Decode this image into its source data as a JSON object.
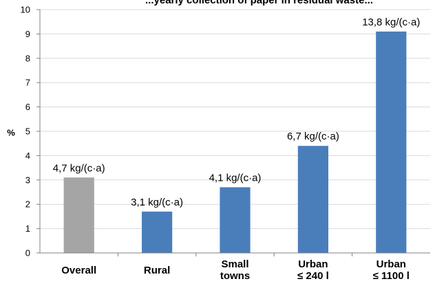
{
  "chart_data": {
    "type": "bar",
    "title": "...yearly collection of paper in residual waste...",
    "xlabel": "",
    "ylabel": "%",
    "ylim": [
      0,
      10
    ],
    "yticks": [
      0,
      1,
      2,
      3,
      4,
      5,
      6,
      7,
      8,
      9,
      10
    ],
    "grid": true,
    "legend": false,
    "categories": [
      [
        "Overall"
      ],
      [
        "Rural"
      ],
      [
        "Small",
        "towns"
      ],
      [
        "Urban",
        "≤ 240 l"
      ],
      [
        "Urban",
        "≤ 1100 l"
      ]
    ],
    "values": [
      3.1,
      1.7,
      2.7,
      4.4,
      9.1
    ],
    "data_labels": [
      "4,7 kg/(c·a)",
      "3,1 kg/(c·a)",
      "4,1 kg/(c·a)",
      "6,7 kg/(c·a)",
      "13,8 kg/(c·a)"
    ],
    "bar_colors": [
      "#a5a5a5",
      "#4a7ebb",
      "#4a7ebb",
      "#4a7ebb",
      "#4a7ebb"
    ],
    "gridline_color": "#d9d9d9",
    "axis_color": "#808080"
  }
}
